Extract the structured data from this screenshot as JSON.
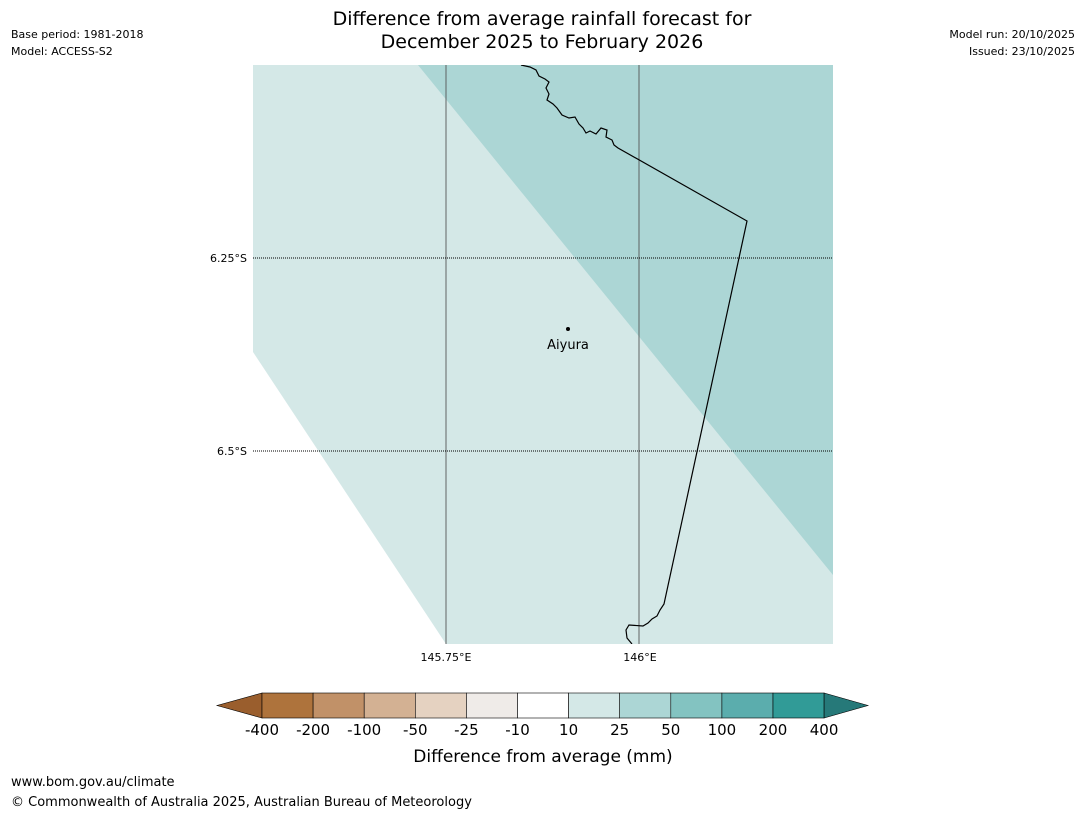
{
  "header": {
    "base_period": "Base period: 1981-2018",
    "model": "Model: ACCESS-S2",
    "title_line1": "Difference from average rainfall forecast for",
    "title_line2": "December 2025 to February 2026",
    "model_run": "Model run: 20/10/2025",
    "issued": "Issued: 23/10/2025"
  },
  "map": {
    "lat_labels": [
      "6.25°S",
      "6.5°S"
    ],
    "lon_labels": [
      "145.75°E",
      "146°E"
    ],
    "place": {
      "name": "Aiyura"
    },
    "colors": {
      "band_10_25": "#d4e8e7",
      "band_25_50": "#acd6d5",
      "gridline": "#000000",
      "coastline": "#000000"
    }
  },
  "legend": {
    "label": "Difference from average (mm)",
    "ticks": [
      "-400",
      "-200",
      "-100",
      "-50",
      "-25",
      "-10",
      "10",
      "25",
      "50",
      "100",
      "200",
      "400"
    ],
    "colors": [
      "#9a5e2d",
      "#ae733c",
      "#c19168",
      "#d3b193",
      "#e5d2c1",
      "#efebe8",
      "#ffffff",
      "#d4e8e7",
      "#acd6d5",
      "#83c3c1",
      "#5badad",
      "#319b97",
      "#267979"
    ]
  },
  "footer": {
    "url": "www.bom.gov.au/climate",
    "copyright": "© Commonwealth of Australia 2025, Australian Bureau of Meteorology"
  }
}
